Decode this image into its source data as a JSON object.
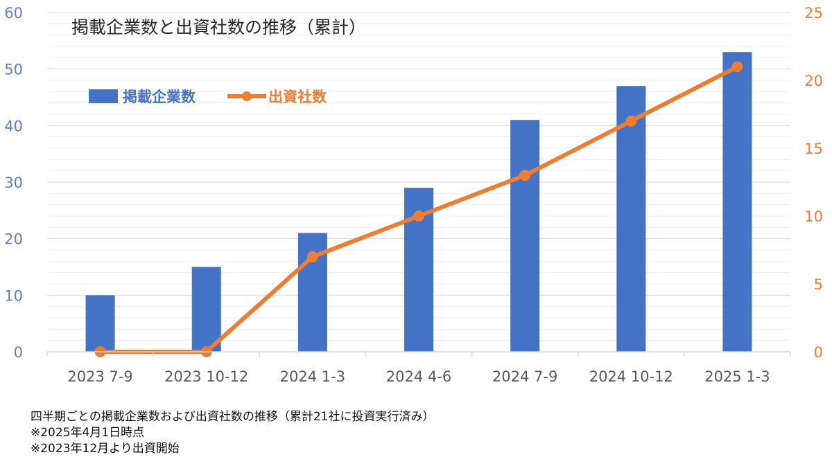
{
  "chart_data": {
    "type": "bar+line",
    "title": "掲載企業数と出資社数の推移（累計）",
    "categories": [
      "2023 7-9",
      "2023 10-12",
      "2024 1-3",
      "2024 4-6",
      "2024 7-9",
      "2024 10-12",
      "2025 1-3"
    ],
    "series": [
      {
        "name": "掲載企業数",
        "type": "bar",
        "axis": "left",
        "color": "#4472c4",
        "values": [
          10,
          15,
          21,
          29,
          41,
          47,
          53
        ]
      },
      {
        "name": "出資社数",
        "type": "line",
        "axis": "right",
        "color": "#ed7d31",
        "values": [
          0,
          0,
          7,
          10,
          13,
          17,
          21
        ]
      }
    ],
    "ylim_left": [
      0,
      60
    ],
    "yticks_left": [
      0,
      10,
      20,
      30,
      40,
      50,
      60
    ],
    "ylim_right": [
      0,
      25
    ],
    "yticks_right": [
      0,
      5,
      10,
      15,
      20,
      25
    ],
    "legend": "top-left",
    "grid": true
  },
  "notes": [
    "四半期ごとの掲載企業数および出資社数の推移（累計21社に投資実行済み）",
    "※2025年4月1日時点",
    "※2023年12月より出資開始"
  ]
}
